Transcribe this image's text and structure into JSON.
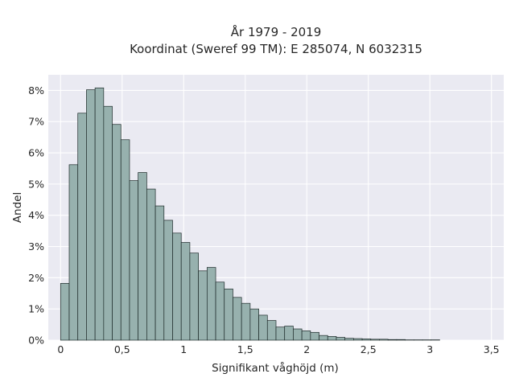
{
  "chart_data": {
    "type": "bar",
    "title": "År 1979 - 2019",
    "subtitle": "Koordinat (Sweref 99 TM): E 285074, N 6032315",
    "xlabel": "Signifikant våghöjd (m)",
    "ylabel": "Andel",
    "xlim": [
      -0.1,
      3.6
    ],
    "ylim": [
      0,
      8.5
    ],
    "x_ticks": [
      0,
      0.5,
      1,
      1.5,
      2,
      2.5,
      3,
      3.5
    ],
    "x_tick_labels": [
      "0",
      "0,5",
      "1",
      "1,5",
      "2",
      "2,5",
      "3",
      "3,5"
    ],
    "y_ticks": [
      0,
      1,
      2,
      3,
      4,
      5,
      6,
      7,
      8
    ],
    "y_tick_labels": [
      "0%",
      "1%",
      "2%",
      "3%",
      "4%",
      "5%",
      "6%",
      "7%",
      "8%"
    ],
    "bin_start": 0,
    "bin_width": 0.07,
    "values": [
      1.82,
      5.62,
      7.27,
      8.02,
      8.08,
      7.49,
      6.91,
      6.42,
      5.11,
      5.37,
      4.84,
      4.3,
      3.84,
      3.43,
      3.13,
      2.79,
      2.22,
      2.33,
      1.86,
      1.64,
      1.37,
      1.18,
      1.0,
      0.8,
      0.63,
      0.42,
      0.45,
      0.36,
      0.3,
      0.25,
      0.15,
      0.12,
      0.09,
      0.06,
      0.05,
      0.04,
      0.03,
      0.03,
      0.02,
      0.02,
      0.01,
      0.01,
      0.01,
      0.01
    ],
    "grid": true,
    "colors": {
      "bar_fill": "#97b1ae",
      "bar_edge": "#1e2b2a",
      "plot_background": "#eaeaf2",
      "grid": "#ffffff",
      "text": "#262626"
    }
  }
}
